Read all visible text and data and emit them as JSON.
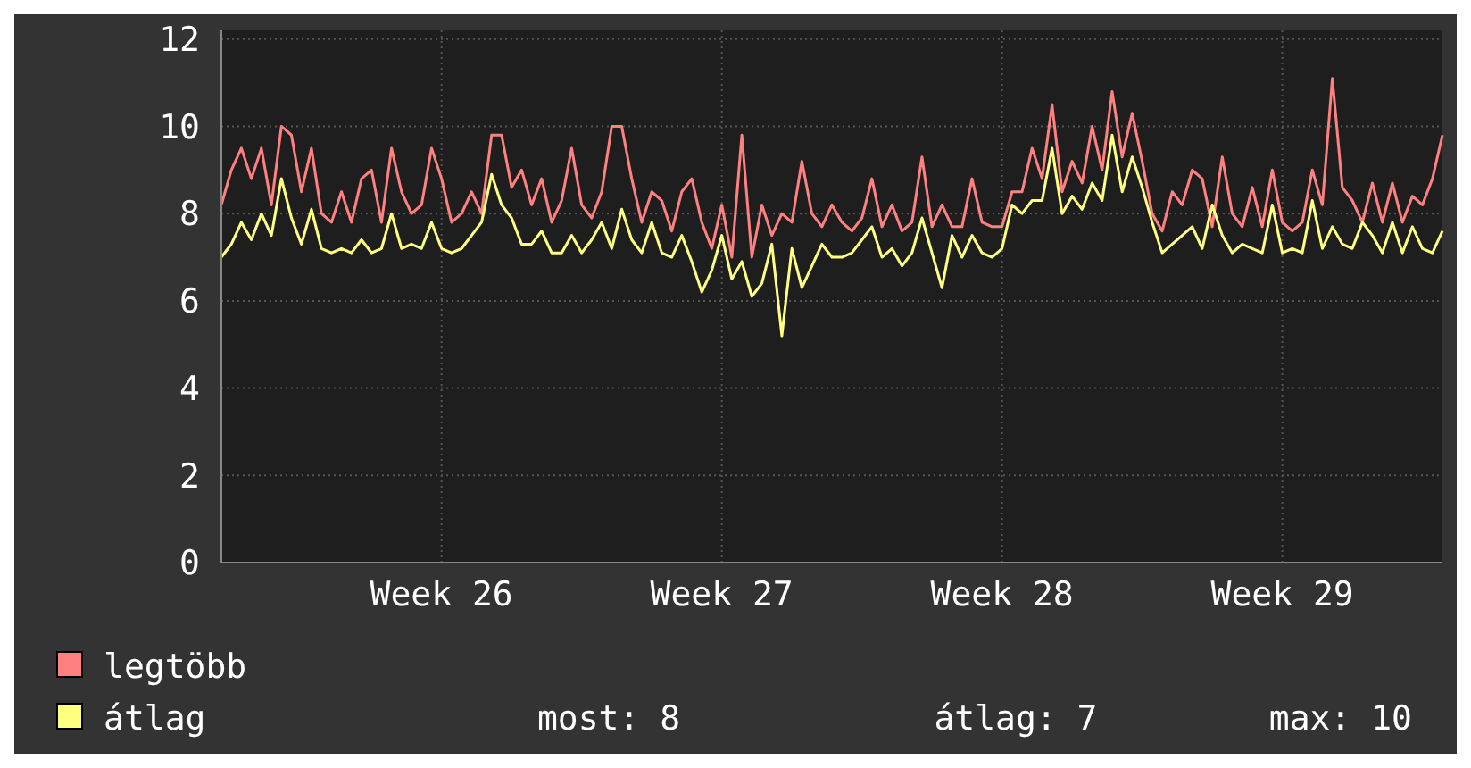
{
  "chart_data": {
    "type": "line",
    "categories": [
      null,
      null,
      null,
      null,
      null,
      null,
      null,
      null,
      null,
      null,
      null,
      null,
      null,
      null,
      null,
      null,
      null,
      null,
      null,
      null,
      null,
      null,
      "Week 26",
      null,
      null,
      null,
      null,
      null,
      null,
      null,
      null,
      null,
      null,
      null,
      null,
      null,
      null,
      null,
      null,
      null,
      null,
      null,
      null,
      null,
      null,
      null,
      null,
      null,
      null,
      null,
      "Week 27",
      null,
      null,
      null,
      null,
      null,
      null,
      null,
      null,
      null,
      null,
      null,
      null,
      null,
      null,
      null,
      null,
      null,
      null,
      null,
      null,
      null,
      null,
      null,
      null,
      null,
      null,
      null,
      "Week 28",
      null,
      null,
      null,
      null,
      null,
      null,
      null,
      null,
      null,
      null,
      null,
      null,
      null,
      null,
      null,
      null,
      null,
      null,
      null,
      null,
      null,
      null,
      null,
      null,
      null,
      null,
      null,
      "Week 29",
      null,
      null,
      null,
      null,
      null,
      null,
      null,
      null,
      null,
      null,
      null,
      null,
      null,
      null,
      null,
      null
    ],
    "series": [
      {
        "name": "legtöbb",
        "color": "#ff8080",
        "values": [
          8.2,
          9,
          9.5,
          8.8,
          9.5,
          8.2,
          10,
          9.8,
          8.5,
          9.5,
          8,
          7.8,
          8.5,
          7.8,
          8.8,
          9,
          7.8,
          9.5,
          8.5,
          8,
          8.2,
          9.5,
          8.8,
          7.8,
          8,
          8.5,
          8,
          9.8,
          9.8,
          8.6,
          9,
          8.2,
          8.8,
          7.8,
          8.3,
          9.5,
          8.2,
          7.9,
          8.5,
          10,
          10,
          8.8,
          7.8,
          8.5,
          8.3,
          7.6,
          8.5,
          8.8,
          7.8,
          7.2,
          8.2,
          7,
          9.8,
          7,
          8.2,
          7.5,
          8,
          7.8,
          9.2,
          8,
          7.7,
          8.2,
          7.8,
          7.6,
          7.9,
          8.8,
          7.7,
          8.2,
          7.6,
          7.8,
          9.3,
          7.7,
          8.2,
          7.7,
          7.7,
          8.8,
          7.8,
          7.7,
          7.7,
          8.5,
          8.5,
          9.5,
          8.8,
          10.5,
          8.5,
          9.2,
          8.7,
          10,
          9,
          10.8,
          9.3,
          10.3,
          9.2,
          8,
          7.6,
          8.5,
          8.2,
          9,
          8.8,
          7.7,
          9.3,
          8,
          7.7,
          8.6,
          7.7,
          9,
          7.8,
          7.6,
          7.8,
          9,
          8.2,
          11.1,
          8.6,
          8.3,
          7.8,
          8.7,
          7.8,
          8.7,
          7.8,
          8.4,
          8.2,
          8.8,
          9.8
        ]
      },
      {
        "name": "átlag",
        "color": "#ffff80",
        "values": [
          7,
          7.3,
          7.8,
          7.4,
          8,
          7.5,
          8.8,
          7.9,
          7.3,
          8.1,
          7.2,
          7.1,
          7.2,
          7.1,
          7.4,
          7.1,
          7.2,
          8,
          7.2,
          7.3,
          7.2,
          7.8,
          7.2,
          7.1,
          7.2,
          7.5,
          7.8,
          8.9,
          8.2,
          7.9,
          7.3,
          7.3,
          7.6,
          7.1,
          7.1,
          7.5,
          7.1,
          7.4,
          7.8,
          7.2,
          8.1,
          7.4,
          7.1,
          7.8,
          7.1,
          7,
          7.5,
          6.9,
          6.2,
          6.7,
          7.5,
          6.5,
          6.9,
          6.1,
          6.4,
          7.3,
          5.2,
          7.2,
          6.3,
          6.8,
          7.3,
          7,
          7,
          7.1,
          7.4,
          7.7,
          7,
          7.2,
          6.8,
          7.1,
          7.9,
          7.1,
          6.3,
          7.5,
          7,
          7.5,
          7.1,
          7,
          7.2,
          8.2,
          8,
          8.3,
          8.3,
          9.5,
          8,
          8.4,
          8.1,
          8.7,
          8.3,
          9.8,
          8.5,
          9.3,
          8.6,
          7.8,
          7.1,
          7.3,
          7.5,
          7.7,
          7.2,
          8.2,
          7.5,
          7.1,
          7.3,
          7.2,
          7.1,
          8.2,
          7.1,
          7.2,
          7.1,
          8.3,
          7.2,
          7.7,
          7.3,
          7.2,
          7.8,
          7.5,
          7.1,
          7.8,
          7.1,
          7.7,
          7.2,
          7.1,
          7.6
        ]
      }
    ],
    "ylim": [
      0,
      12.2
    ],
    "yticks": [
      0,
      2,
      4,
      6,
      8,
      10,
      12
    ],
    "grid": true,
    "legend": "bottom",
    "annotations": [
      "most: 8",
      "átlag: 7",
      "max: 10"
    ]
  }
}
